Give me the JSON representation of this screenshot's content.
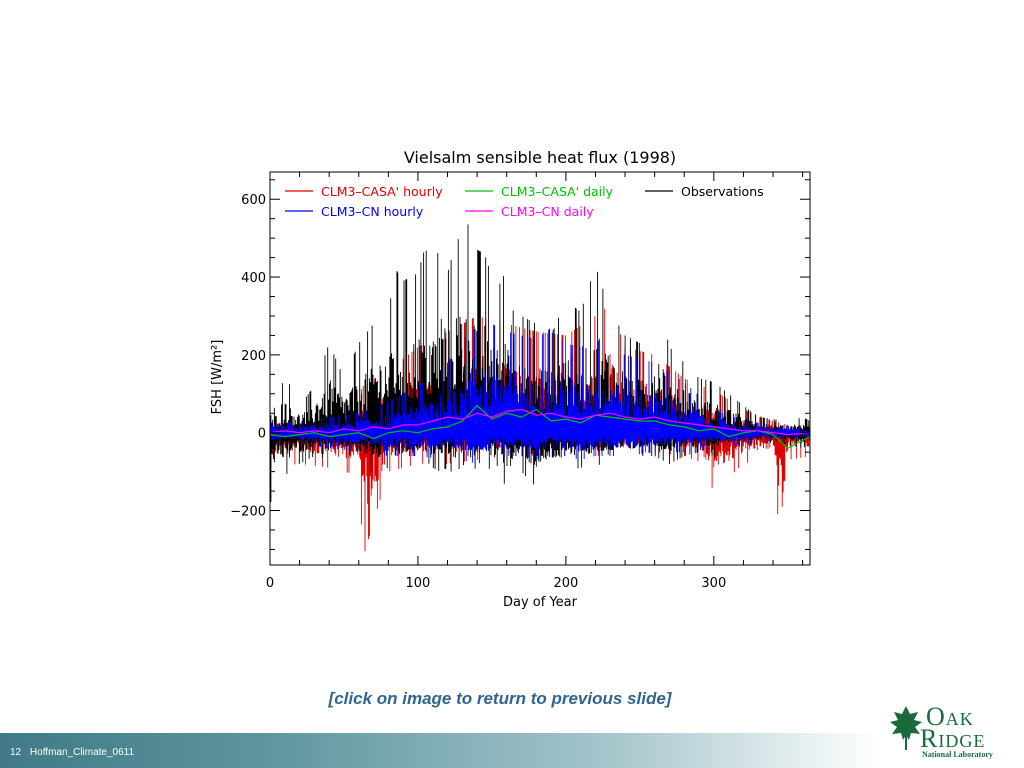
{
  "caption": "[click on image to return to previous slide]",
  "footer": {
    "slide_number": "12",
    "presentation_name": "Hoffman_Climate_0611"
  },
  "logo": {
    "line1": "Oak",
    "line2": "Ridge",
    "line3": "National Laboratory"
  },
  "colors": {
    "casa_hourly": "#e00000",
    "casa_daily": "#00c000",
    "cn_hourly": "#0000ff",
    "cn_daily": "#ff00ff",
    "observations": "#000000",
    "logo_green": "#1a6a3a",
    "caption": "#31658e"
  },
  "chart_data": {
    "type": "line",
    "title": "Vielsalm sensible heat flux (1998)",
    "xlabel": "Day of Year",
    "ylabel": "FSH [W/m²]",
    "xlim": [
      0,
      365
    ],
    "ylim": [
      -340,
      670
    ],
    "xticks": [
      0,
      100,
      200,
      300
    ],
    "yticks": [
      -200,
      0,
      200,
      400,
      600
    ],
    "grid": false,
    "legend_position": "top",
    "series": [
      {
        "name": "CLM3–CASA' hourly",
        "color_key": "casa_hourly",
        "kind": "hourly",
        "envelope": {
          "x": [
            0,
            20,
            40,
            60,
            63,
            80,
            100,
            120,
            140,
            160,
            180,
            200,
            220,
            230,
            240,
            260,
            280,
            290,
            300,
            320,
            340,
            346,
            350,
            365
          ],
          "upper": [
            20,
            40,
            60,
            100,
            120,
            160,
            220,
            260,
            300,
            280,
            260,
            250,
            300,
            330,
            220,
            200,
            140,
            120,
            110,
            60,
            30,
            25,
            20,
            20
          ],
          "lower": [
            -90,
            -80,
            -90,
            -110,
            -320,
            -100,
            -80,
            -80,
            -70,
            -60,
            -60,
            -60,
            -60,
            -55,
            -50,
            -50,
            -60,
            -75,
            -150,
            -80,
            -60,
            -340,
            -70,
            -60
          ]
        }
      },
      {
        "name": "CLM3–CASA' daily",
        "color_key": "casa_daily",
        "kind": "daily",
        "x": [
          0,
          10,
          20,
          30,
          40,
          50,
          60,
          70,
          80,
          90,
          100,
          110,
          120,
          130,
          140,
          150,
          160,
          170,
          180,
          190,
          200,
          210,
          220,
          230,
          240,
          250,
          260,
          270,
          280,
          290,
          300,
          310,
          320,
          330,
          340,
          350,
          365
        ],
        "y": [
          -5,
          -10,
          -5,
          0,
          -10,
          -5,
          0,
          -15,
          0,
          5,
          0,
          10,
          15,
          30,
          70,
          35,
          50,
          40,
          60,
          30,
          35,
          25,
          45,
          40,
          35,
          30,
          30,
          20,
          15,
          5,
          10,
          -10,
          0,
          5,
          -5,
          -40,
          -10
        ]
      },
      {
        "name": "Observations",
        "color_key": "observations",
        "kind": "hourly",
        "envelope": {
          "x": [
            0,
            5,
            10,
            20,
            30,
            40,
            50,
            60,
            70,
            80,
            85,
            90,
            100,
            105,
            110,
            115,
            120,
            125,
            130,
            135,
            140,
            145,
            150,
            155,
            160,
            165,
            170,
            180,
            190,
            200,
            210,
            220,
            230,
            240,
            250,
            260,
            265,
            270,
            280,
            290,
            300,
            310,
            320,
            330,
            340,
            350,
            360,
            365
          ],
          "upper": [
            40,
            80,
            150,
            70,
            120,
            230,
            140,
            230,
            280,
            310,
            420,
            390,
            410,
            480,
            380,
            500,
            410,
            480,
            520,
            540,
            470,
            460,
            400,
            380,
            420,
            525,
            300,
            280,
            250,
            340,
            310,
            430,
            310,
            250,
            230,
            300,
            300,
            220,
            180,
            140,
            130,
            100,
            70,
            40,
            35,
            30,
            40,
            30
          ],
          "upper_peaks": [
            80,
            150,
            230,
            230,
            420,
            480,
            500,
            520,
            540,
            525,
            430,
            300
          ],
          "lower": [
            -190,
            -90,
            -110,
            -80,
            -60,
            -70,
            -60,
            -80,
            -100,
            -90,
            -100,
            -80,
            -70,
            -70,
            -90,
            -100,
            -90,
            -110,
            -80,
            -100,
            -90,
            -80,
            -100,
            -80,
            -155,
            -110,
            -100,
            -140,
            -100,
            -100,
            -90,
            -80,
            -90,
            -70,
            -60,
            -60,
            -70,
            -80,
            -60,
            -50,
            -60,
            -40,
            -35,
            -30,
            -25,
            -30,
            -40,
            -30
          ]
        }
      },
      {
        "name": "CLM3–CN hourly",
        "color_key": "cn_hourly",
        "kind": "hourly",
        "envelope": {
          "x": [
            0,
            20,
            40,
            60,
            80,
            100,
            120,
            130,
            140,
            150,
            160,
            170,
            180,
            190,
            200,
            210,
            220,
            240,
            260,
            280,
            300,
            320,
            340,
            365
          ],
          "upper": [
            20,
            30,
            40,
            50,
            80,
            120,
            180,
            240,
            270,
            280,
            260,
            250,
            240,
            270,
            230,
            220,
            240,
            200,
            180,
            130,
            60,
            30,
            20,
            15
          ],
          "lower": [
            -30,
            -30,
            -40,
            -50,
            -60,
            -60,
            -70,
            -70,
            -80,
            -70,
            -60,
            -60,
            -70,
            -60,
            -60,
            -70,
            -60,
            -60,
            -50,
            -50,
            -40,
            -30,
            -20,
            -15
          ]
        }
      },
      {
        "name": "CLM3–CN daily",
        "color_key": "cn_daily",
        "kind": "daily",
        "x": [
          0,
          10,
          20,
          30,
          40,
          50,
          60,
          70,
          80,
          90,
          100,
          110,
          120,
          130,
          140,
          150,
          160,
          170,
          180,
          190,
          200,
          210,
          220,
          230,
          240,
          250,
          260,
          270,
          280,
          290,
          300,
          310,
          320,
          330,
          340,
          350,
          365
        ],
        "y": [
          0,
          5,
          0,
          5,
          0,
          10,
          5,
          15,
          10,
          20,
          20,
          30,
          40,
          35,
          50,
          40,
          55,
          60,
          45,
          50,
          40,
          35,
          45,
          50,
          40,
          35,
          40,
          30,
          25,
          20,
          15,
          10,
          5,
          5,
          0,
          -5,
          0
        ]
      }
    ],
    "legend_rows": [
      [
        "CLM3–CASA' hourly",
        "CLM3–CASA' daily",
        "Observations"
      ],
      [
        "CLM3–CN hourly",
        "CLM3–CN daily"
      ]
    ]
  }
}
